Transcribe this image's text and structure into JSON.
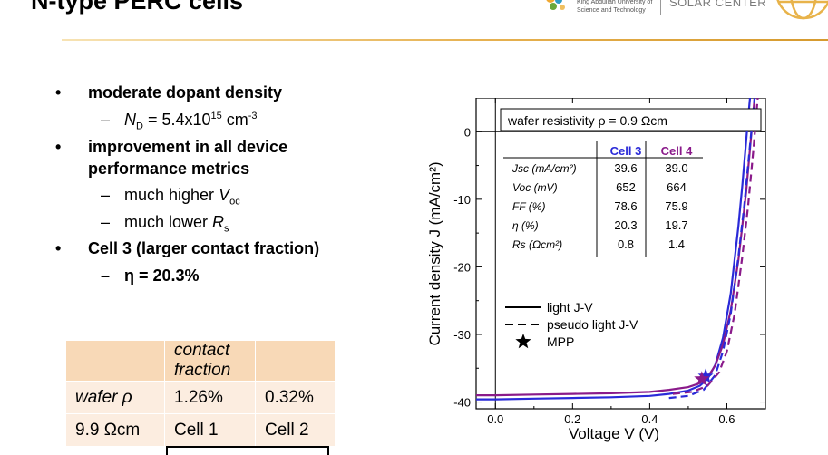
{
  "slide": {
    "title": "N-type PERC cells",
    "logo": {
      "university": "King Abdullah University of\nScience and Technology",
      "center": "SOLAR\nCENTER"
    }
  },
  "bullets": [
    {
      "level": 1,
      "text": "moderate dopant density"
    },
    {
      "level": 2,
      "text": "ND = 5.4x1015 cm-3"
    },
    {
      "level": 1,
      "text": "improvement in all device"
    },
    {
      "level": 1,
      "text": "performance metrics",
      "continuation": true
    },
    {
      "level": 2,
      "text": "much higher Voc"
    },
    {
      "level": 2,
      "text": "much lower Rs"
    },
    {
      "level": 1,
      "text": "Cell 3 (larger contact fraction)"
    },
    {
      "level": 2,
      "text": "η = 20.3%"
    }
  ],
  "bullet_glyph": "•",
  "dash_glyph": "–",
  "contact_table": {
    "header": [
      "",
      "contact fraction",
      ""
    ],
    "rows": [
      [
        "wafer ρ",
        "1.26%",
        "0.32%"
      ],
      [
        "9.9 Ωcm",
        "Cell 1",
        "Cell 2"
      ]
    ]
  },
  "colors": {
    "cell3": "#2a2ad8",
    "cell4": "#8a1a8a",
    "table_header": "#f8d9b7",
    "table_body": "#fcede0",
    "accent_rule": "#e6b150"
  },
  "chart_data": {
    "type": "line",
    "xlabel": "Voltage V (V)",
    "ylabel": "Current density J (mA/cm²)",
    "xlim": [
      -0.05,
      0.7
    ],
    "ylim": [
      -41,
      5
    ],
    "xticks": [
      0.0,
      0.2,
      0.4,
      0.6
    ],
    "xtick_labels": [
      "0.0",
      "0.2",
      "0.4",
      "0.6"
    ],
    "yticks": [
      0,
      -10,
      -20,
      -30,
      -40
    ],
    "ytick_labels": [
      "0",
      "-10",
      "-20",
      "-30",
      "-40"
    ],
    "annotation": "wafer resistivity ρ = 0.9 Ωcm",
    "params_table": {
      "columns": [
        "Cell 3",
        "Cell 4"
      ],
      "rows": [
        {
          "label": "Jsc (mA/cm²)",
          "values": [
            "39.6",
            "39.0"
          ]
        },
        {
          "label": "Voc (mV)",
          "values": [
            "652",
            "664"
          ]
        },
        {
          "label": "FF (%)",
          "values": [
            "78.6",
            "75.9"
          ]
        },
        {
          "label": "η (%)",
          "values": [
            "20.3",
            "19.7"
          ]
        },
        {
          "label": "Rs (Ωcm²)",
          "values": [
            "0.8",
            "1.4"
          ]
        }
      ]
    },
    "legend": {
      "placement": "bottom-left",
      "entries": [
        "light J-V",
        "pseudo light J-V",
        "MPP"
      ]
    },
    "series": [
      {
        "name": "Cell 3",
        "style": "light",
        "color": "#2a2ad8",
        "x": [
          -0.05,
          0.0,
          0.1,
          0.2,
          0.3,
          0.4,
          0.45,
          0.5,
          0.53,
          0.55,
          0.57,
          0.59,
          0.61,
          0.63,
          0.64,
          0.65,
          0.652,
          0.66
        ],
        "y": [
          -39.6,
          -39.6,
          -39.5,
          -39.4,
          -39.3,
          -39.1,
          -38.8,
          -38.3,
          -37.6,
          -36.6,
          -34.5,
          -30.5,
          -24.0,
          -14.0,
          -8.0,
          -1.5,
          0.0,
          6.0
        ]
      },
      {
        "name": "Cell 4",
        "style": "light",
        "color": "#8a1a8a",
        "x": [
          -0.05,
          0.0,
          0.1,
          0.2,
          0.3,
          0.4,
          0.45,
          0.5,
          0.53,
          0.55,
          0.57,
          0.59,
          0.61,
          0.63,
          0.65,
          0.66,
          0.664,
          0.672
        ],
        "y": [
          -39.0,
          -39.0,
          -38.9,
          -38.8,
          -38.7,
          -38.5,
          -38.2,
          -37.8,
          -37.2,
          -36.3,
          -34.6,
          -31.5,
          -26.5,
          -19.0,
          -9.0,
          -2.5,
          0.0,
          6.0
        ]
      },
      {
        "name": "Cell 3",
        "style": "pseudo",
        "color": "#2a2ad8",
        "x": [
          0.45,
          0.5,
          0.54,
          0.57,
          0.59,
          0.61,
          0.63,
          0.645,
          0.66,
          0.672
        ],
        "y": [
          -39.4,
          -39.1,
          -38.2,
          -36.0,
          -32.5,
          -27.0,
          -18.5,
          -11.0,
          -2.0,
          5.0
        ]
      },
      {
        "name": "Cell 4",
        "style": "pseudo",
        "color": "#8a1a8a",
        "x": [
          0.46,
          0.51,
          0.55,
          0.58,
          0.6,
          0.62,
          0.64,
          0.655,
          0.67,
          0.68
        ],
        "y": [
          -38.8,
          -38.5,
          -37.6,
          -35.6,
          -32.5,
          -27.0,
          -18.5,
          -11.0,
          -2.0,
          5.0
        ]
      }
    ],
    "mpp": [
      {
        "name": "Cell 3",
        "x": 0.545,
        "y": -36.2,
        "color": "#2a2ad8"
      },
      {
        "name": "Cell 4",
        "x": 0.535,
        "y": -36.6,
        "color": "#8a1a8a"
      }
    ]
  }
}
